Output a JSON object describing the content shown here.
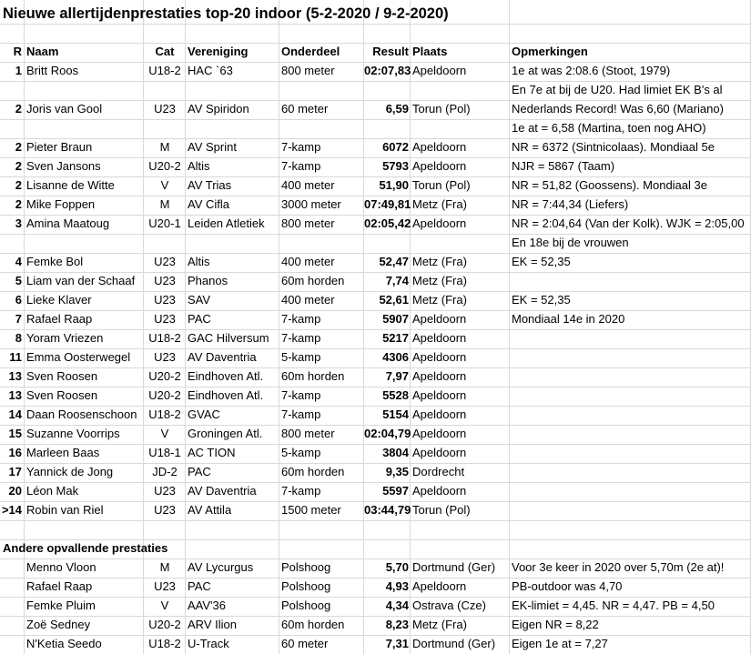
{
  "title": "Nieuwe allertijdenprestaties top-20 indoor (5-2-2020 / 9-2-2020)",
  "headers": {
    "rank": "R",
    "name": "Naam",
    "cat": "Cat",
    "club": "Vereniging",
    "event": "Onderdeel",
    "result": "Result",
    "place": "Plaats",
    "notes": "Opmerkingen"
  },
  "rows": [
    {
      "rank": "1",
      "name": "Britt Roos",
      "cat": "U18-2",
      "club": "HAC `63",
      "event": "800 meter",
      "result": "02:07,83",
      "place": "Apeldoorn",
      "note": "1e at was 2:08.6 (Stoot, 1979)"
    },
    {
      "rank": "",
      "name": "",
      "cat": "",
      "club": "",
      "event": "",
      "result": "",
      "place": "",
      "note": "En 7e at bij de U20. Had limiet EK B's al"
    },
    {
      "rank": "2",
      "name": "Joris van Gool",
      "cat": "U23",
      "club": "AV Spiridon",
      "event": "60 meter",
      "result": "6,59",
      "place": "Torun (Pol)",
      "note": "Nederlands Record! Was 6,60 (Mariano)"
    },
    {
      "rank": "",
      "name": "",
      "cat": "",
      "club": "",
      "event": "",
      "result": "",
      "place": "",
      "note": "1e at = 6,58 (Martina, toen nog AHO)"
    },
    {
      "rank": "2",
      "name": "Pieter Braun",
      "cat": "M",
      "club": "AV Sprint",
      "event": "7-kamp",
      "result": "6072",
      "place": "Apeldoorn",
      "note": "NR = 6372 (Sintnicolaas). Mondiaal 5e"
    },
    {
      "rank": "2",
      "name": "Sven Jansons",
      "cat": "U20-2",
      "club": "Altis",
      "event": "7-kamp",
      "result": "5793",
      "place": "Apeldoorn",
      "note": "NJR = 5867 (Taam)"
    },
    {
      "rank": "2",
      "name": "Lisanne de Witte",
      "cat": "V",
      "club": "AV Trias",
      "event": "400 meter",
      "result": "51,90",
      "place": "Torun (Pol)",
      "note": "NR = 51,82 (Goossens). Mondiaal 3e"
    },
    {
      "rank": "2",
      "name": "Mike Foppen",
      "cat": "M",
      "club": "AV Cifla",
      "event": "3000 meter",
      "result": "07:49,81",
      "place": "Metz (Fra)",
      "note": "NR = 7:44,34 (Liefers)"
    },
    {
      "rank": "3",
      "name": "Amina Maatoug",
      "cat": "U20-1",
      "club": "Leiden Atletiek",
      "event": "800 meter",
      "result": "02:05,42",
      "place": "Apeldoorn",
      "note": "NR = 2:04,64 (Van der Kolk). WJK = 2:05,00"
    },
    {
      "rank": "",
      "name": "",
      "cat": "",
      "club": "",
      "event": "",
      "result": "",
      "place": "",
      "note": "En 18e bij de vrouwen"
    },
    {
      "rank": "4",
      "name": "Femke Bol",
      "cat": "U23",
      "club": "Altis",
      "event": "400 meter",
      "result": "52,47",
      "place": "Metz (Fra)",
      "note": "EK = 52,35"
    },
    {
      "rank": "5",
      "name": "Liam van der Schaaf",
      "cat": "U23",
      "club": "Phanos",
      "event": "60m horden",
      "result": "7,74",
      "place": "Metz (Fra)",
      "note": ""
    },
    {
      "rank": "6",
      "name": "Lieke Klaver",
      "cat": "U23",
      "club": "SAV",
      "event": "400 meter",
      "result": "52,61",
      "place": "Metz (Fra)",
      "note": "EK = 52,35"
    },
    {
      "rank": "7",
      "name": "Rafael Raap",
      "cat": "U23",
      "club": "PAC",
      "event": "7-kamp",
      "result": "5907",
      "place": "Apeldoorn",
      "note": "Mondiaal 14e in 2020"
    },
    {
      "rank": "8",
      "name": "Yoram Vriezen",
      "cat": "U18-2",
      "club": "GAC Hilversum",
      "event": "7-kamp",
      "result": "5217",
      "place": "Apeldoorn",
      "note": ""
    },
    {
      "rank": "11",
      "name": "Emma Oosterwegel",
      "cat": "U23",
      "club": "AV Daventria",
      "event": "5-kamp",
      "result": "4306",
      "place": "Apeldoorn",
      "note": ""
    },
    {
      "rank": "13",
      "name": "Sven Roosen",
      "cat": "U20-2",
      "club": "Eindhoven Atl.",
      "event": "60m horden",
      "result": "7,97",
      "place": "Apeldoorn",
      "note": ""
    },
    {
      "rank": "13",
      "name": "Sven Roosen",
      "cat": "U20-2",
      "club": "Eindhoven Atl.",
      "event": "7-kamp",
      "result": "5528",
      "place": "Apeldoorn",
      "note": ""
    },
    {
      "rank": "14",
      "name": "Daan Roosenschoon",
      "cat": "U18-2",
      "club": "GVAC",
      "event": "7-kamp",
      "result": "5154",
      "place": "Apeldoorn",
      "note": ""
    },
    {
      "rank": "15",
      "name": "Suzanne Voorrips",
      "cat": "V",
      "club": "Groningen Atl.",
      "event": "800 meter",
      "result": "02:04,79",
      "place": "Apeldoorn",
      "note": ""
    },
    {
      "rank": "16",
      "name": "Marleen Baas",
      "cat": "U18-1",
      "club": "AC TION",
      "event": "5-kamp",
      "result": "3804",
      "place": "Apeldoorn",
      "note": ""
    },
    {
      "rank": "17",
      "name": "Yannick de Jong",
      "cat": "JD-2",
      "club": "PAC",
      "event": "60m horden",
      "result": "9,35",
      "place": "Dordrecht",
      "note": ""
    },
    {
      "rank": "20",
      "name": "Léon Mak",
      "cat": "U23",
      "club": "AV Daventria",
      "event": "7-kamp",
      "result": "5597",
      "place": "Apeldoorn",
      "note": ""
    },
    {
      "rank": ">14",
      "name": "Robin van Riel",
      "cat": "U23",
      "club": "AV Attila",
      "event": "1500 meter",
      "result": "03:44,79",
      "place": "Torun (Pol)",
      "note": ""
    }
  ],
  "section_title": "Andere opvallende prestaties",
  "other_rows": [
    {
      "rank": "",
      "name": "Menno Vloon",
      "cat": "M",
      "club": "AV Lycurgus",
      "event": "Polshoog",
      "result": "5,70",
      "place": "Dortmund (Ger)",
      "note": "Voor 3e keer in 2020 over 5,70m (2e at)!"
    },
    {
      "rank": "",
      "name": "Rafael Raap",
      "cat": "U23",
      "club": "PAC",
      "event": "Polshoog",
      "result": "4,93",
      "place": "Apeldoorn",
      "note": "PB-outdoor was 4,70"
    },
    {
      "rank": "",
      "name": "Femke Pluim",
      "cat": "V",
      "club": "AAV'36",
      "event": "Polshoog",
      "result": "4,34",
      "place": "Ostrava (Cze)",
      "note": "EK-limiet = 4,45. NR = 4,47. PB = 4,50"
    },
    {
      "rank": "",
      "name": "Zoë Sedney",
      "cat": "U20-2",
      "club": "ARV Ilion",
      "event": "60m horden",
      "result": "8,23",
      "place": "Metz (Fra)",
      "note": "Eigen NR = 8,22"
    },
    {
      "rank": "",
      "name": "N'Ketia Seedo",
      "cat": "U18-2",
      "club": "U-Track",
      "event": "60 meter",
      "result": "7,31",
      "place": "Dortmund (Ger)",
      "note": "Eigen 1e at = 7,27"
    }
  ]
}
